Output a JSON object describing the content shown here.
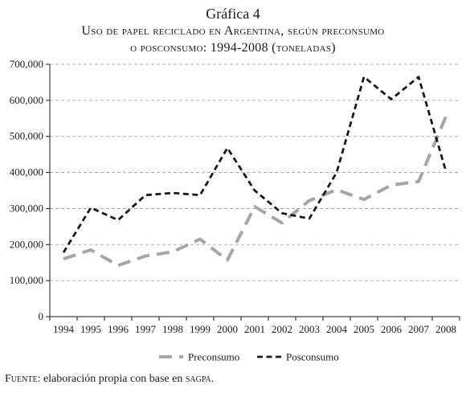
{
  "header": {
    "label": "Gráfica 4",
    "title_line1": "Uso de papel reciclado en Argentina, según preconsumo",
    "title_line2": "o posconsumo: 1994-2008 (toneladas)"
  },
  "chart_data": {
    "type": "line",
    "x": [
      "1994",
      "1995",
      "1996",
      "1997",
      "1998",
      "1999",
      "2000",
      "2001",
      "2002",
      "2003",
      "2004",
      "2005",
      "2006",
      "2007",
      "2008"
    ],
    "series": [
      {
        "name": "Preconsumo",
        "color": "#a6a6a6",
        "style": "long-dash",
        "values": [
          160000,
          185000,
          142000,
          168000,
          180000,
          215000,
          157000,
          305000,
          260000,
          322000,
          352000,
          325000,
          365000,
          375000,
          555000
        ]
      },
      {
        "name": "Posconsumo",
        "color": "#1a1a1a",
        "style": "short-dash",
        "values": [
          178000,
          302000,
          268000,
          337000,
          343000,
          337000,
          468000,
          350000,
          287000,
          272000,
          400000,
          665000,
          603000,
          665000,
          403000
        ]
      }
    ],
    "yticks": [
      "0",
      "100,000",
      "200,000",
      "300,000",
      "400,000",
      "500,000",
      "600,000",
      "700,000"
    ],
    "ylim": [
      0,
      700000
    ],
    "grid": "horizontal dashed",
    "legend": "bottom-center"
  },
  "source": {
    "lead": "Fuente",
    "text": ": elaboración propia con base en ",
    "abbr": "sagpa",
    "end": "."
  }
}
